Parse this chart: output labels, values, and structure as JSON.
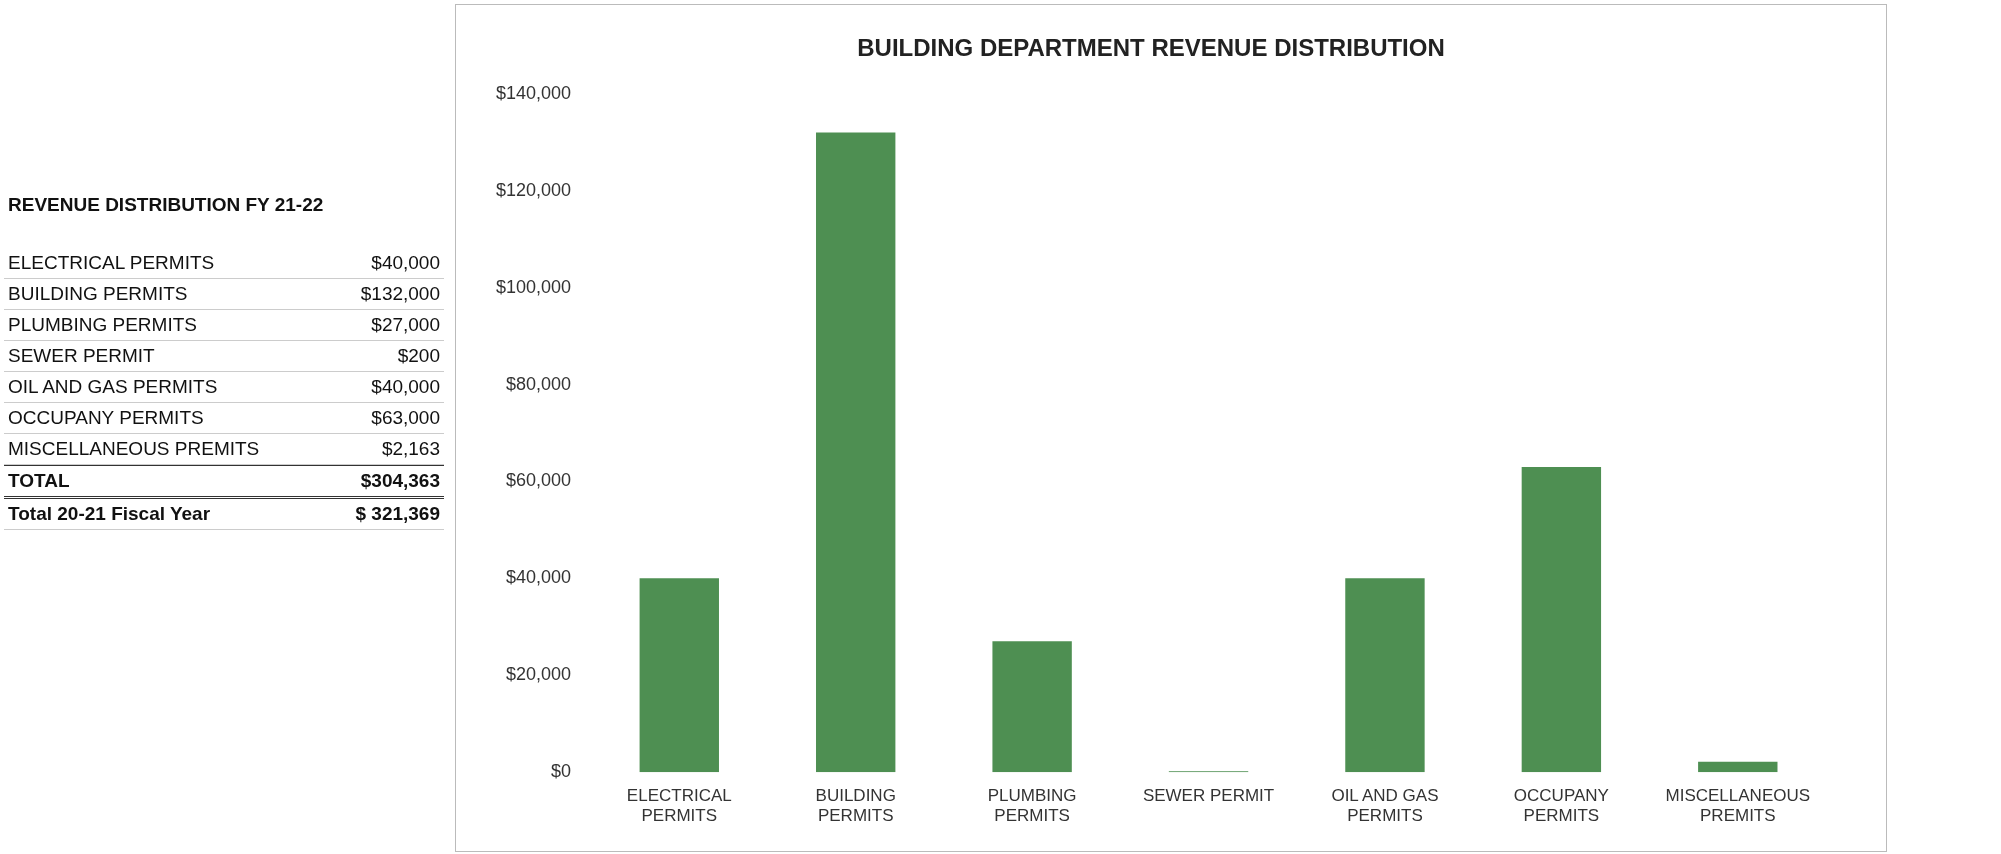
{
  "chart_data": {
    "type": "bar",
    "title": "BUILDING DEPARTMENT REVENUE DISTRIBUTION",
    "categories": [
      "ELECTRICAL PERMITS",
      "BUILDING PERMITS",
      "PLUMBING PERMITS",
      "SEWER PERMIT",
      "OIL AND GAS PERMITS",
      "OCCUPANY PERMITS",
      "MISCELLANEOUS PREMITS"
    ],
    "values": [
      40000,
      132000,
      27000,
      200,
      40000,
      63000,
      2163
    ],
    "color": "#4e8f52",
    "ylim": [
      0,
      140000
    ],
    "yticks": [
      {
        "value": 0,
        "label": "$0"
      },
      {
        "value": 20000,
        "label": "$20,000"
      },
      {
        "value": 40000,
        "label": "$40,000"
      },
      {
        "value": 60000,
        "label": "$60,000"
      },
      {
        "value": 80000,
        "label": "$80,000"
      },
      {
        "value": 100000,
        "label": "$100,000"
      },
      {
        "value": 120000,
        "label": "$120,000"
      },
      {
        "value": 140000,
        "label": "$140,000"
      }
    ],
    "grid": false,
    "legend": false,
    "annotations": [
      "REVENUE DISTRIBUTION FY 21-22",
      "ELECTRICAL PERMITS",
      "$40,000",
      "BUILDING PERMITS",
      "$132,000",
      "PLUMBING PERMITS",
      "$27,000",
      "SEWER PERMIT",
      "$200",
      "OIL AND GAS PERMITS",
      "$40,000",
      "OCCUPANY PERMITS",
      "$63,000",
      "MISCELLANEOUS PREMITS",
      "$2,163",
      "TOTAL",
      "$304,363",
      "Total 20-21 Fiscal Year",
      "$ 321,369"
    ]
  }
}
